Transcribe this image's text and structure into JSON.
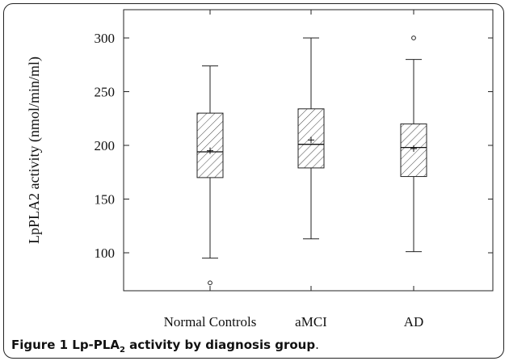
{
  "chart_data": {
    "type": "box",
    "ylabel": "LpPLA2 activity (nmol/min/ml)",
    "ylim": [
      70,
      315
    ],
    "yticks": [
      100,
      150,
      200,
      250,
      300
    ],
    "categories": [
      "Normal Controls",
      "aMCI",
      "AD"
    ],
    "boxes": [
      {
        "category": "Normal Controls",
        "whisker_low": 95,
        "q1": 170,
        "median": 194,
        "mean": 195,
        "q3": 230,
        "whisker_high": 274,
        "outliers": [
          72
        ]
      },
      {
        "category": "aMCI",
        "whisker_low": 113,
        "q1": 179,
        "median": 201,
        "mean": 205,
        "q3": 234,
        "whisker_high": 300,
        "outliers": []
      },
      {
        "category": "AD",
        "whisker_low": 101,
        "q1": 171,
        "median": 198,
        "mean": 197,
        "q3": 220,
        "whisker_high": 280,
        "outliers": [
          300
        ]
      }
    ],
    "grid": false,
    "box_fill": "hatched"
  },
  "caption": {
    "prefix": "Figure 1 Lp-PLA",
    "subscript": "2",
    "suffix": " activity by diagnosis group",
    "period": "."
  }
}
